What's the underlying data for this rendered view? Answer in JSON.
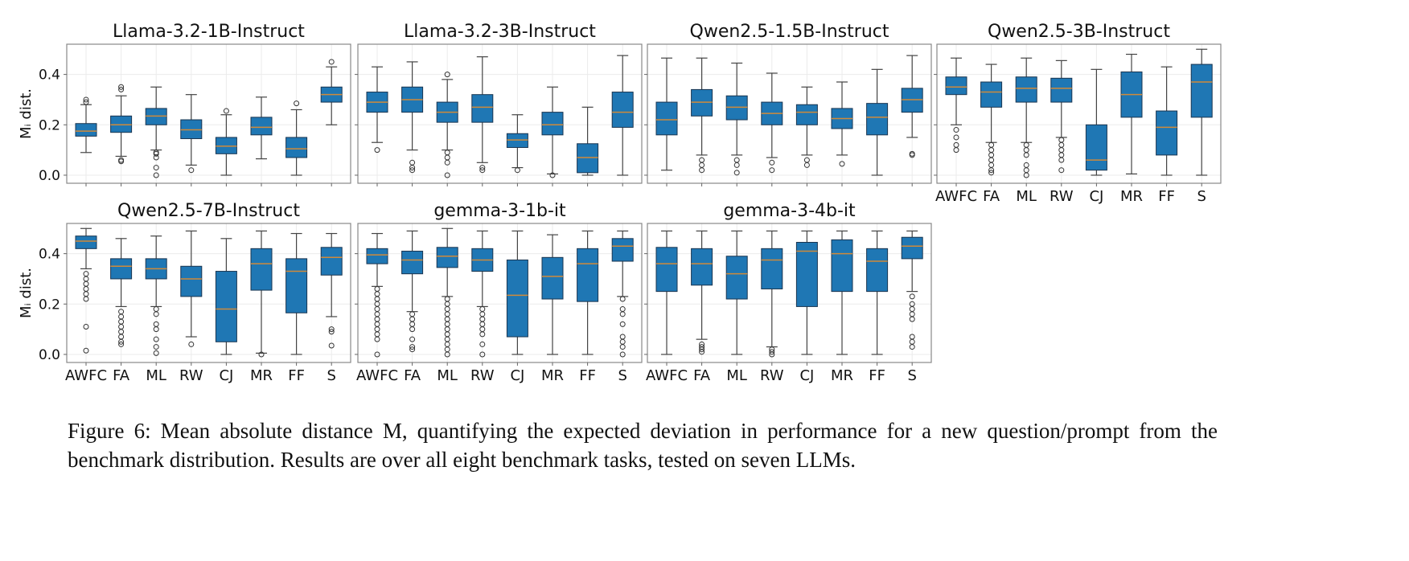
{
  "chart_data": {
    "type": "box",
    "ylabel": "M_i dist.",
    "yticks": [
      "0.0",
      "0.2",
      "0.4"
    ],
    "ytick_values": [
      0.0,
      0.2,
      0.4
    ],
    "ylim": [
      -0.032,
      0.52
    ],
    "grid": true,
    "categories": [
      "AWFC",
      "FA",
      "ML",
      "RW",
      "CJ",
      "MR",
      "FF",
      "S"
    ],
    "box_color": "#1f77b4",
    "median_color": "#d08a3a",
    "stats_format": [
      "whisker_low",
      "q1",
      "median",
      "q3",
      "whisker_high"
    ],
    "panels": [
      {
        "title": "Llama-3.2-1B-Instruct",
        "boxes": [
          {
            "s": [
              0.09,
              0.155,
              0.175,
              0.205,
              0.28
            ],
            "out": [
              0.29,
              0.3
            ]
          },
          {
            "s": [
              0.075,
              0.17,
              0.2,
              0.235,
              0.315
            ],
            "out": [
              0.06,
              0.055,
              0.34,
              0.35
            ]
          },
          {
            "s": [
              0.1,
              0.2,
              0.235,
              0.265,
              0.35
            ],
            "out": [
              0.09,
              0.085,
              0.07,
              0.03,
              0.0
            ]
          },
          {
            "s": [
              0.04,
              0.145,
              0.18,
              0.22,
              0.32
            ],
            "out": [
              0.02
            ]
          },
          {
            "s": [
              0.0,
              0.085,
              0.115,
              0.15,
              0.24
            ],
            "out": [
              0.255
            ]
          },
          {
            "s": [
              0.065,
              0.16,
              0.19,
              0.23,
              0.31
            ],
            "out": []
          },
          {
            "s": [
              0.0,
              0.07,
              0.105,
              0.15,
              0.26
            ],
            "out": [
              0.285
            ]
          },
          {
            "s": [
              0.2,
              0.29,
              0.32,
              0.35,
              0.43
            ],
            "out": [
              0.45
            ]
          }
        ]
      },
      {
        "title": "Llama-3.2-3B-Instruct",
        "boxes": [
          {
            "s": [
              0.13,
              0.25,
              0.29,
              0.33,
              0.43
            ],
            "out": [
              0.1
            ]
          },
          {
            "s": [
              0.1,
              0.25,
              0.3,
              0.35,
              0.45
            ],
            "out": [
              0.05,
              0.03,
              0.02
            ]
          },
          {
            "s": [
              0.1,
              0.21,
              0.25,
              0.29,
              0.38
            ],
            "out": [
              0.4,
              0.09,
              0.07,
              0.05,
              0.0
            ]
          },
          {
            "s": [
              0.05,
              0.21,
              0.27,
              0.32,
              0.47
            ],
            "out": [
              0.03,
              0.02
            ]
          },
          {
            "s": [
              0.03,
              0.11,
              0.14,
              0.165,
              0.24
            ],
            "out": [
              0.02
            ]
          },
          {
            "s": [
              0.005,
              0.16,
              0.2,
              0.25,
              0.35
            ],
            "out": [
              0.0
            ]
          },
          {
            "s": [
              0.0,
              0.01,
              0.07,
              0.125,
              0.27
            ],
            "out": []
          },
          {
            "s": [
              0.0,
              0.19,
              0.25,
              0.33,
              0.475
            ],
            "out": []
          }
        ]
      },
      {
        "title": "Qwen2.5-1.5B-Instruct",
        "boxes": [
          {
            "s": [
              0.02,
              0.16,
              0.22,
              0.29,
              0.465
            ],
            "out": []
          },
          {
            "s": [
              0.08,
              0.235,
              0.29,
              0.34,
              0.465
            ],
            "out": [
              0.06,
              0.04,
              0.02
            ]
          },
          {
            "s": [
              0.08,
              0.22,
              0.27,
              0.315,
              0.445
            ],
            "out": [
              0.06,
              0.04,
              0.01
            ]
          },
          {
            "s": [
              0.07,
              0.2,
              0.245,
              0.29,
              0.405
            ],
            "out": [
              0.05,
              0.02
            ]
          },
          {
            "s": [
              0.08,
              0.2,
              0.25,
              0.28,
              0.35
            ],
            "out": [
              0.06,
              0.04
            ]
          },
          {
            "s": [
              0.08,
              0.185,
              0.225,
              0.265,
              0.37
            ],
            "out": [
              0.045
            ]
          },
          {
            "s": [
              0.0,
              0.16,
              0.23,
              0.285,
              0.42
            ],
            "out": []
          },
          {
            "s": [
              0.15,
              0.25,
              0.3,
              0.345,
              0.475
            ],
            "out": [
              0.085,
              0.08
            ]
          }
        ]
      },
      {
        "title": "Qwen2.5-3B-Instruct",
        "boxes": [
          {
            "s": [
              0.2,
              0.32,
              0.35,
              0.39,
              0.465
            ],
            "out": [
              0.18,
              0.15,
              0.12,
              0.1
            ]
          },
          {
            "s": [
              0.13,
              0.27,
              0.33,
              0.37,
              0.44
            ],
            "out": [
              0.12,
              0.1,
              0.08,
              0.06,
              0.04,
              0.02,
              0.01
            ]
          },
          {
            "s": [
              0.13,
              0.29,
              0.345,
              0.39,
              0.465
            ],
            "out": [
              0.12,
              0.1,
              0.08,
              0.04,
              0.02,
              0.0
            ]
          },
          {
            "s": [
              0.15,
              0.29,
              0.345,
              0.385,
              0.455
            ],
            "out": [
              0.14,
              0.12,
              0.1,
              0.08,
              0.06,
              0.02
            ]
          },
          {
            "s": [
              0.0,
              0.02,
              0.06,
              0.2,
              0.42
            ],
            "out": []
          },
          {
            "s": [
              0.005,
              0.23,
              0.32,
              0.41,
              0.48
            ],
            "out": []
          },
          {
            "s": [
              0.0,
              0.08,
              0.19,
              0.255,
              0.43
            ],
            "out": []
          },
          {
            "s": [
              0.0,
              0.23,
              0.37,
              0.44,
              0.5
            ],
            "out": []
          }
        ]
      },
      {
        "title": "Qwen2.5-7B-Instruct",
        "boxes": [
          {
            "s": [
              0.34,
              0.42,
              0.45,
              0.47,
              0.5
            ],
            "out": [
              0.32,
              0.3,
              0.28,
              0.26,
              0.24,
              0.22,
              0.11,
              0.015
            ]
          },
          {
            "s": [
              0.19,
              0.3,
              0.35,
              0.38,
              0.46
            ],
            "out": [
              0.17,
              0.15,
              0.13,
              0.11,
              0.09,
              0.07,
              0.05,
              0.04
            ]
          },
          {
            "s": [
              0.19,
              0.3,
              0.34,
              0.38,
              0.47
            ],
            "out": [
              0.18,
              0.16,
              0.12,
              0.1,
              0.06,
              0.03,
              0.005
            ]
          },
          {
            "s": [
              0.07,
              0.23,
              0.3,
              0.35,
              0.49
            ],
            "out": [
              0.04
            ]
          },
          {
            "s": [
              0.0,
              0.05,
              0.18,
              0.33,
              0.46
            ],
            "out": []
          },
          {
            "s": [
              0.005,
              0.255,
              0.36,
              0.42,
              0.49
            ],
            "out": [
              0.0
            ]
          },
          {
            "s": [
              0.0,
              0.165,
              0.33,
              0.38,
              0.48
            ],
            "out": []
          },
          {
            "s": [
              0.15,
              0.315,
              0.385,
              0.425,
              0.48
            ],
            "out": [
              0.1,
              0.09,
              0.035
            ]
          }
        ]
      },
      {
        "title": "gemma-3-1b-it",
        "boxes": [
          {
            "s": [
              0.27,
              0.36,
              0.395,
              0.42,
              0.48
            ],
            "out": [
              0.26,
              0.24,
              0.22,
              0.2,
              0.18,
              0.16,
              0.14,
              0.12,
              0.1,
              0.08,
              0.06,
              0.0
            ]
          },
          {
            "s": [
              0.17,
              0.32,
              0.375,
              0.41,
              0.49
            ],
            "out": [
              0.16,
              0.14,
              0.12,
              0.1,
              0.06,
              0.03,
              0.02
            ]
          },
          {
            "s": [
              0.23,
              0.345,
              0.39,
              0.425,
              0.5
            ],
            "out": [
              0.22,
              0.2,
              0.18,
              0.16,
              0.14,
              0.12,
              0.1,
              0.08,
              0.06,
              0.04,
              0.02,
              0.0
            ]
          },
          {
            "s": [
              0.19,
              0.33,
              0.375,
              0.42,
              0.49
            ],
            "out": [
              0.18,
              0.16,
              0.14,
              0.12,
              0.1,
              0.08,
              0.04,
              0.0
            ]
          },
          {
            "s": [
              0.0,
              0.07,
              0.235,
              0.375,
              0.49
            ],
            "out": []
          },
          {
            "s": [
              0.0,
              0.22,
              0.31,
              0.385,
              0.475
            ],
            "out": []
          },
          {
            "s": [
              0.0,
              0.21,
              0.36,
              0.42,
              0.49
            ],
            "out": []
          },
          {
            "s": [
              0.23,
              0.37,
              0.43,
              0.46,
              0.49
            ],
            "out": [
              0.22,
              0.18,
              0.16,
              0.12,
              0.07,
              0.05,
              0.03,
              0.0
            ]
          }
        ]
      },
      {
        "title": "gemma-3-4b-it",
        "boxes": [
          {
            "s": [
              0.0,
              0.25,
              0.36,
              0.425,
              0.49
            ],
            "out": []
          },
          {
            "s": [
              0.06,
              0.275,
              0.36,
              0.42,
              0.49
            ],
            "out": [
              0.04,
              0.03,
              0.02,
              0.01
            ]
          },
          {
            "s": [
              0.0,
              0.22,
              0.32,
              0.39,
              0.49
            ],
            "out": []
          },
          {
            "s": [
              0.03,
              0.26,
              0.375,
              0.42,
              0.49
            ],
            "out": [
              0.02,
              0.01,
              0.0
            ]
          },
          {
            "s": [
              0.0,
              0.19,
              0.41,
              0.445,
              0.49
            ],
            "out": []
          },
          {
            "s": [
              0.0,
              0.25,
              0.4,
              0.455,
              0.49
            ],
            "out": []
          },
          {
            "s": [
              0.0,
              0.25,
              0.37,
              0.42,
              0.49
            ],
            "out": []
          },
          {
            "s": [
              0.25,
              0.38,
              0.43,
              0.465,
              0.49
            ],
            "out": [
              0.23,
              0.2,
              0.18,
              0.16,
              0.14,
              0.07,
              0.05,
              0.03
            ]
          }
        ]
      }
    ]
  },
  "caption": "Figure 6: Mean absolute distance M, quantifying the expected deviation in performance for a new question/prompt from the benchmark distribution. Results are over all eight benchmark tasks, tested on seven LLMs."
}
